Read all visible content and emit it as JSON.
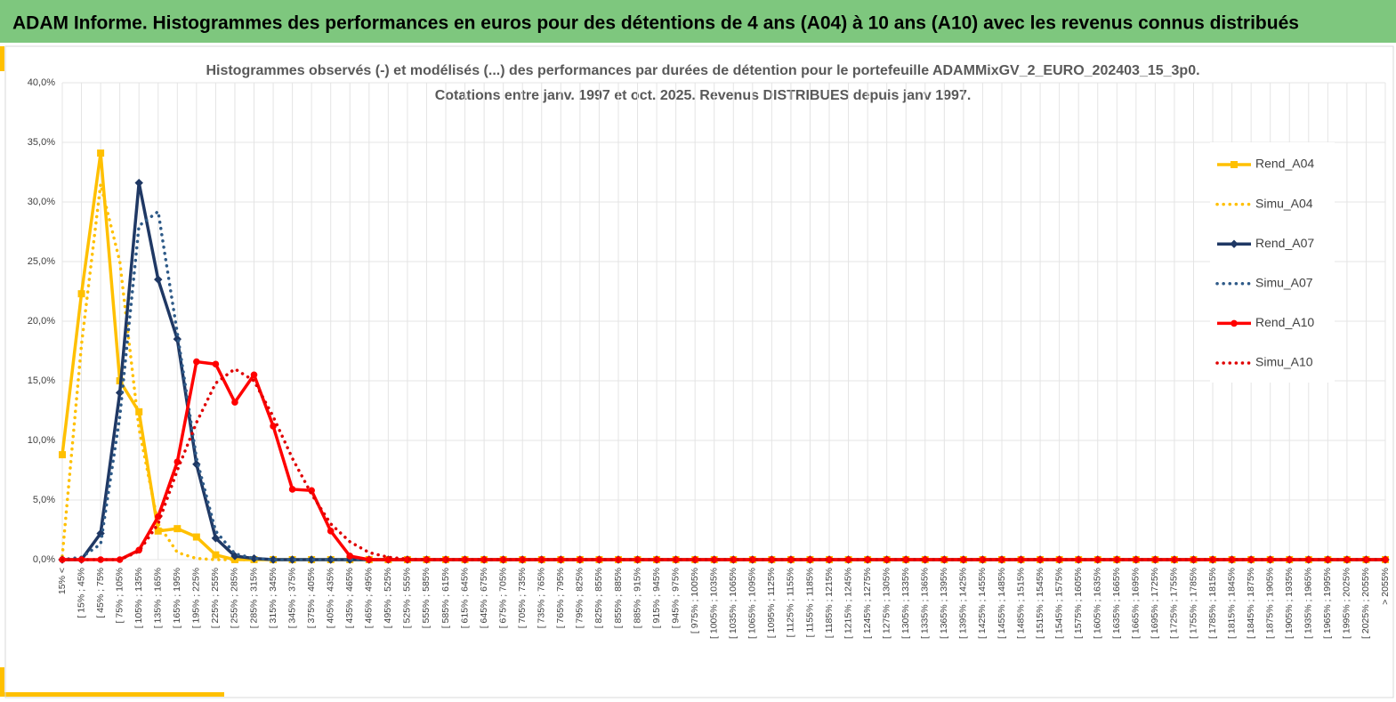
{
  "header": {
    "title": "ADAM Informe. Histogrammes des performances en euros pour des détentions de 4 ans (A04) à 10 ans (A10) avec les revenus connus distribués"
  },
  "chart_data": {
    "type": "line",
    "title": "Histogrammes observés (-) et modélisés (...) des performances par durées de détention pour le portefeuille ADAMMixGV_2_EURO_202403_15_3p0.",
    "subtitle": "Cotations entre janv. 1997 et oct. 2025. Revenus DISTRIBUES depuis janv 1997.",
    "categories": [
      "15% <",
      "[ 15% ; 45%",
      "[ 45% ; 75%",
      "[ 75% ; 105%",
      "[ 105% ; 135%",
      "[ 135% ; 165%",
      "[ 165% ; 195%",
      "[ 195% ; 225%",
      "[ 225% ; 255%",
      "[ 255% ; 285%",
      "[ 285% ; 315%",
      "[ 315% ; 345%",
      "[ 345% ; 375%",
      "[ 375% ; 405%",
      "[ 405% ; 435%",
      "[ 435% ; 465%",
      "[ 465% ; 495%",
      "[ 495% ; 525%",
      "[ 525% ; 555%",
      "[ 555% ; 585%",
      "[ 585% ; 615%",
      "[ 615% ; 645%",
      "[ 645% ; 675%",
      "[ 675% ; 705%",
      "[ 705% ; 735%",
      "[ 735% ; 765%",
      "[ 765% ; 795%",
      "[ 795% ; 825%",
      "[ 825% ; 855%",
      "[ 855% ; 885%",
      "[ 885% ; 915%",
      "[ 915% ; 945%",
      "[ 945% ; 975%",
      "[ 975% ; 1005%",
      "[ 1005% ; 1035%",
      "[ 1035% ; 1065%",
      "[ 1065% ; 1095%",
      "[ 1095% ; 1125%",
      "[ 1125% ; 1155%",
      "[ 1155% ; 1185%",
      "[ 1185% ; 1215%",
      "[ 1215% ; 1245%",
      "[ 1245% ; 1275%",
      "[ 1275% ; 1305%",
      "[ 1305% ; 1335%",
      "[ 1335% ; 1365%",
      "[ 1365% ; 1395%",
      "[ 1395% ; 1425%",
      "[ 1425% ; 1455%",
      "[ 1455% ; 1485%",
      "[ 1485% ; 1515%",
      "[ 1515% ; 1545%",
      "[ 1545% ; 1575%",
      "[ 1575% ; 1605%",
      "[ 1605% ; 1635%",
      "[ 1635% ; 1665%",
      "[ 1665% ; 1695%",
      "[ 1695% ; 1725%",
      "[ 1725% ; 1755%",
      "[ 1755% ; 1785%",
      "[ 1785% ; 1815%",
      "[ 1815% ; 1845%",
      "[ 1845% ; 1875%",
      "[ 1875% ; 1905%",
      "[ 1905% ; 1935%",
      "[ 1935% ; 1965%",
      "[ 1965% ; 1995%",
      "[ 1995% ; 2025%",
      "[ 2025% ; 2055%",
      "> 2055%"
    ],
    "series": [
      {
        "name": "Rend_A04",
        "color": "#ffc000",
        "dash": "solid",
        "marker": "square",
        "values": [
          8.8,
          22.3,
          34.1,
          15.0,
          12.4,
          2.4,
          2.6,
          1.9,
          0.4,
          0,
          0,
          0,
          0,
          0,
          0,
          0,
          0,
          0,
          0,
          0,
          0,
          0,
          0,
          0,
          0,
          0,
          0,
          0,
          0,
          0,
          0,
          0,
          0,
          0,
          0,
          0,
          0,
          0,
          0,
          0,
          0,
          0,
          0,
          0,
          0,
          0,
          0,
          0,
          0,
          0,
          0,
          0,
          0,
          0,
          0,
          0,
          0,
          0,
          0,
          0,
          0,
          0,
          0,
          0,
          0,
          0,
          0,
          0,
          0,
          0
        ]
      },
      {
        "name": "Simu_A04",
        "color": "#ffc000",
        "dash": "dotted",
        "values": [
          0.3,
          18,
          31.5,
          25,
          11,
          3,
          0.6,
          0.1,
          0,
          0,
          0,
          0,
          0,
          0,
          0,
          0,
          0,
          0,
          0,
          0,
          0,
          0,
          0,
          0,
          0,
          0,
          0,
          0,
          0,
          0,
          0,
          0,
          0,
          0,
          0,
          0,
          0,
          0,
          0,
          0,
          0,
          0,
          0,
          0,
          0,
          0,
          0,
          0,
          0,
          0,
          0,
          0,
          0,
          0,
          0,
          0,
          0,
          0,
          0,
          0,
          0,
          0,
          0,
          0,
          0,
          0,
          0,
          0,
          0,
          0
        ]
      },
      {
        "name": "Rend_A07",
        "color": "#1f3864",
        "dash": "solid",
        "marker": "diamond",
        "values": [
          0,
          0,
          2.2,
          14,
          31.6,
          23.5,
          18.5,
          8,
          1.8,
          0.3,
          0.1,
          0,
          0,
          0,
          0,
          0,
          0,
          0,
          0,
          0,
          0,
          0,
          0,
          0,
          0,
          0,
          0,
          0,
          0,
          0,
          0,
          0,
          0,
          0,
          0,
          0,
          0,
          0,
          0,
          0,
          0,
          0,
          0,
          0,
          0,
          0,
          0,
          0,
          0,
          0,
          0,
          0,
          0,
          0,
          0,
          0,
          0,
          0,
          0,
          0,
          0,
          0,
          0,
          0,
          0,
          0,
          0,
          0,
          0,
          0
        ]
      },
      {
        "name": "Simu_A07",
        "color": "#2e5a88",
        "dash": "dotted",
        "values": [
          0,
          0.2,
          1.3,
          12,
          28,
          29.2,
          19,
          8.5,
          2.4,
          0.5,
          0.1,
          0,
          0,
          0,
          0,
          0,
          0,
          0,
          0,
          0,
          0,
          0,
          0,
          0,
          0,
          0,
          0,
          0,
          0,
          0,
          0,
          0,
          0,
          0,
          0,
          0,
          0,
          0,
          0,
          0,
          0,
          0,
          0,
          0,
          0,
          0,
          0,
          0,
          0,
          0,
          0,
          0,
          0,
          0,
          0,
          0,
          0,
          0,
          0,
          0,
          0,
          0,
          0,
          0,
          0,
          0,
          0,
          0,
          0,
          0
        ]
      },
      {
        "name": "Rend_A10",
        "color": "#ff0000",
        "dash": "solid",
        "marker": "circle",
        "values": [
          0,
          0,
          0,
          0,
          0.8,
          3.6,
          8.2,
          16.6,
          16.4,
          13.2,
          15.5,
          11.2,
          5.9,
          5.8,
          2.4,
          0.3,
          0,
          0,
          0,
          0,
          0,
          0,
          0,
          0,
          0,
          0,
          0,
          0,
          0,
          0,
          0,
          0,
          0,
          0,
          0,
          0,
          0,
          0,
          0,
          0,
          0,
          0,
          0,
          0,
          0,
          0,
          0,
          0,
          0,
          0,
          0,
          0,
          0,
          0,
          0,
          0,
          0,
          0,
          0,
          0,
          0,
          0,
          0,
          0,
          0,
          0,
          0,
          0,
          0,
          0
        ]
      },
      {
        "name": "Simu_A10",
        "color": "#e00000",
        "dash": "dotted",
        "values": [
          0,
          0,
          0,
          0,
          0.7,
          3,
          7.5,
          11.5,
          14.8,
          16,
          15,
          12,
          8.5,
          5.5,
          3,
          1.5,
          0.6,
          0.2,
          0.05,
          0,
          0,
          0,
          0,
          0,
          0,
          0,
          0,
          0,
          0,
          0,
          0,
          0,
          0,
          0,
          0,
          0,
          0,
          0,
          0,
          0,
          0,
          0,
          0,
          0,
          0,
          0,
          0,
          0,
          0,
          0,
          0,
          0,
          0,
          0,
          0,
          0,
          0,
          0,
          0,
          0,
          0,
          0,
          0,
          0,
          0,
          0,
          0,
          0,
          0,
          0
        ]
      }
    ],
    "ylim": [
      0,
      40
    ],
    "yticks": [
      {
        "value": 0,
        "label": "0,0%"
      },
      {
        "value": 5,
        "label": "5,0%"
      },
      {
        "value": 10,
        "label": "10,0%"
      },
      {
        "value": 15,
        "label": "15,0%"
      },
      {
        "value": 20,
        "label": "20,0%"
      },
      {
        "value": 25,
        "label": "25,0%"
      },
      {
        "value": 30,
        "label": "30,0%"
      },
      {
        "value": 35,
        "label": "35,0%"
      },
      {
        "value": 40,
        "label": "40,0%"
      }
    ],
    "grid": true,
    "legend": "right"
  }
}
